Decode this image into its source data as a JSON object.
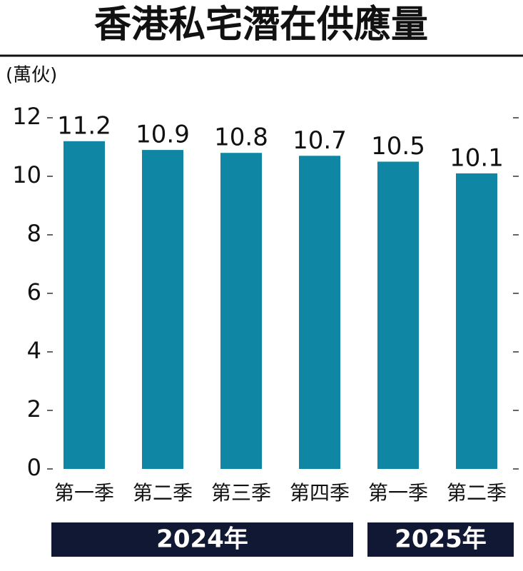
{
  "chart_data": {
    "type": "bar",
    "title": "香港私宅潛在供應量",
    "y_label": "(萬伙)",
    "categories": [
      "第一季",
      "第二季",
      "第三季",
      "第四季",
      "第一季",
      "第二季"
    ],
    "values": [
      11.2,
      10.9,
      10.8,
      10.7,
      10.5,
      10.1
    ],
    "groups": [
      "2024年",
      "2025年"
    ],
    "color": "#0f86a3",
    "ylim": [
      0,
      12
    ],
    "yticks": [
      0,
      2,
      4,
      6,
      8,
      10,
      12
    ]
  }
}
